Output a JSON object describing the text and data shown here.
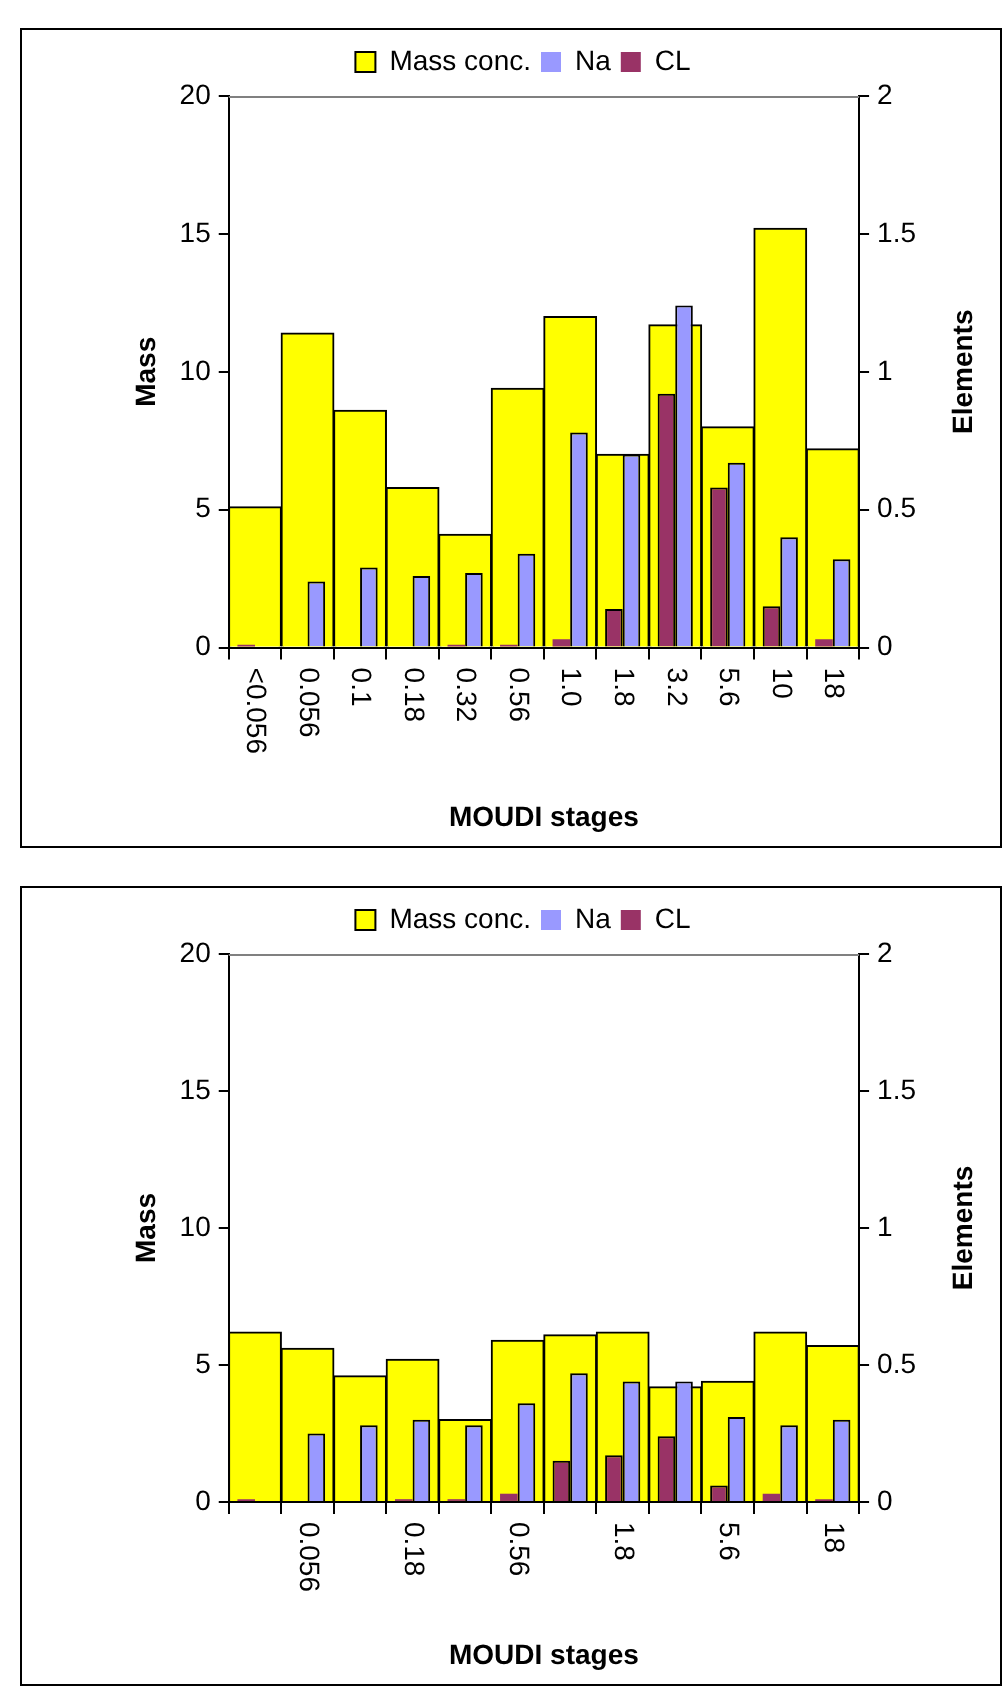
{
  "chart_data": [
    {
      "type": "bar",
      "categories": [
        "<0.056",
        "0.056",
        "0.1",
        "0.18",
        "0.32",
        "0.56",
        "1.0",
        "1.8",
        "3.2",
        "5.6",
        "10",
        "18"
      ],
      "series": [
        {
          "name": "Mass conc.",
          "color": "#ffff00",
          "values": [
            5.1,
            11.4,
            8.6,
            5.8,
            4.1,
            9.4,
            12.0,
            7.0,
            11.7,
            8.0,
            15.2,
            7.2
          ]
        },
        {
          "name": "Na",
          "color": "#9999ff",
          "axis": "y2",
          "values": [
            0,
            0.24,
            0.29,
            0.26,
            0.27,
            0.34,
            0.78,
            0.7,
            1.24,
            0.67,
            0.4,
            0.32
          ]
        },
        {
          "name": "CL",
          "color": "#993366",
          "axis": "y2",
          "values": [
            0.01,
            0,
            0,
            0,
            0.01,
            0.01,
            0.03,
            0.14,
            0.92,
            0.58,
            0.15,
            0.03
          ]
        }
      ],
      "xlabel": "MOUDI stages",
      "ylabel": "Mass",
      "y2label": "Elements",
      "ylim": [
        0,
        20
      ],
      "yticks": [
        0,
        5,
        10,
        15,
        20
      ],
      "y2lim": [
        0,
        2
      ],
      "y2ticks": [
        0,
        0.5,
        1,
        1.5,
        2
      ],
      "legend": "top"
    },
    {
      "type": "bar",
      "categories": [
        null,
        "0.056",
        null,
        "0.18",
        null,
        "0.56",
        null,
        "1.8",
        null,
        "5.6",
        null,
        "18"
      ],
      "series": [
        {
          "name": "Mass conc.",
          "color": "#ffff00",
          "values": [
            6.2,
            5.6,
            4.6,
            5.2,
            3.0,
            5.9,
            6.1,
            6.2,
            4.2,
            4.4,
            6.2,
            5.7
          ]
        },
        {
          "name": "Na",
          "color": "#9999ff",
          "axis": "y2",
          "values": [
            0,
            0.25,
            0.28,
            0.3,
            0.28,
            0.36,
            0.47,
            0.44,
            0.44,
            0.31,
            0.28,
            0.3
          ]
        },
        {
          "name": "CL",
          "color": "#993366",
          "axis": "y2",
          "values": [
            0.01,
            0,
            0,
            0.01,
            0.01,
            0.03,
            0.15,
            0.17,
            0.24,
            0.06,
            0.03,
            0.01
          ]
        }
      ],
      "xlabel": "MOUDI stages",
      "ylabel": "Mass",
      "y2label": "Elements",
      "ylim": [
        0,
        20
      ],
      "yticks": [
        0,
        5,
        10,
        15,
        20
      ],
      "y2lim": [
        0,
        2
      ],
      "y2ticks": [
        0,
        0.5,
        1,
        1.5,
        2
      ],
      "legend": "top"
    }
  ]
}
